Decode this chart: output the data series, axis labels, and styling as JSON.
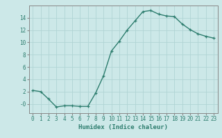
{
  "x": [
    0,
    1,
    2,
    3,
    4,
    5,
    6,
    7,
    8,
    9,
    10,
    11,
    12,
    13,
    14,
    15,
    16,
    17,
    18,
    19,
    20,
    21,
    22,
    23
  ],
  "y": [
    2.2,
    2.0,
    0.8,
    -0.5,
    -0.3,
    -0.3,
    -0.4,
    -0.4,
    1.8,
    4.6,
    8.6,
    10.2,
    12.0,
    13.5,
    15.0,
    15.2,
    14.6,
    14.3,
    14.2,
    13.0,
    12.1,
    11.4,
    11.0,
    10.7
  ],
  "line_color": "#2d7d6e",
  "marker": "+",
  "marker_size": 3,
  "marker_linewidth": 0.9,
  "line_width": 1.0,
  "background_color": "#cce8e8",
  "grid_color": "#b0d4d4",
  "xlabel": "Humidex (Indice chaleur)",
  "xlabel_fontsize": 6.5,
  "tick_fontsize": 5.5,
  "ylim": [
    -1.5,
    16
  ],
  "xlim": [
    -0.5,
    23.5
  ],
  "yticks": [
    0,
    2,
    4,
    6,
    8,
    10,
    12,
    14
  ],
  "ytick_labels": [
    "-0",
    "2",
    "4",
    "6",
    "8",
    "10",
    "12",
    "14"
  ],
  "xticks": [
    0,
    1,
    2,
    3,
    4,
    5,
    6,
    7,
    8,
    9,
    10,
    11,
    12,
    13,
    14,
    15,
    16,
    17,
    18,
    19,
    20,
    21,
    22,
    23
  ]
}
